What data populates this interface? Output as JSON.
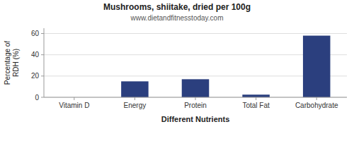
{
  "chart_data": {
    "type": "bar",
    "title": "Mushrooms, shiitake, dried per 100g",
    "subtitle": "www.dietandfitnesstoday.com",
    "xlabel": "Different Nutrients",
    "ylabel": "Percentage of\nRDH (%)",
    "categories": [
      "Vitamin D",
      "Energy",
      "Protein",
      "Total Fat",
      "Carbohydrate"
    ],
    "values": [
      0.0,
      15.0,
      17.0,
      2.5,
      58.0
    ],
    "color": "#2b3f7e",
    "ylim": [
      0,
      65
    ],
    "yticks": [
      0,
      20,
      40,
      60
    ],
    "grid": true
  }
}
